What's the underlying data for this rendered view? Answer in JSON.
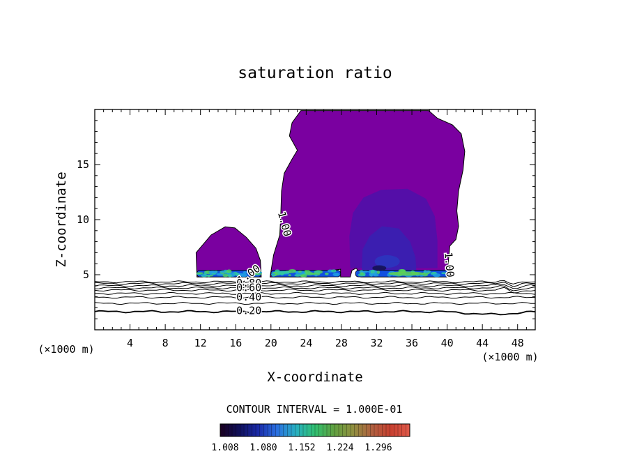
{
  "chart_data": {
    "type": "contour",
    "title": "saturation ratio",
    "xlabel": "X-coordinate",
    "ylabel": "Z-coordinate",
    "x_unit": "(×1000 m)",
    "z_unit": "(×1000 m)",
    "xlim": [
      0,
      50
    ],
    "ylim": [
      0,
      20
    ],
    "x_ticks": [
      4,
      8,
      12,
      16,
      20,
      24,
      28,
      32,
      36,
      40,
      44,
      48
    ],
    "y_ticks": [
      5,
      10,
      15
    ],
    "contour_interval_text": "CONTOUR INTERVAL = 1.000E-01",
    "contour_labels": [
      {
        "text": "1.00",
        "x": 21.5,
        "z": 9.6,
        "angle": 75
      },
      {
        "text": "1.00",
        "x": 40.2,
        "z": 5.9,
        "angle": 85
      },
      {
        "text": "1.00",
        "x": 17.5,
        "z": 5.0,
        "angle": -35
      },
      {
        "text": "0.80",
        "x": 17.5,
        "z": 4.2,
        "angle": 0
      },
      {
        "text": "0.60",
        "x": 17.5,
        "z": 3.8,
        "angle": 0
      },
      {
        "text": "0.40",
        "x": 17.5,
        "z": 2.95,
        "angle": 0
      },
      {
        "text": "0.20",
        "x": 17.5,
        "z": 1.7,
        "angle": 0
      }
    ],
    "colorbar": {
      "tick_labels": [
        "1.008",
        "1.080",
        "1.152",
        "1.224",
        "1.296"
      ],
      "colors": [
        "#1a0020",
        "#10105a",
        "#1a2aa8",
        "#2a70e0",
        "#28b0c0",
        "#30c070",
        "#60a040",
        "#909040",
        "#b06040",
        "#c84030",
        "#e05a4a"
      ]
    },
    "fill_colors": {
      "supersaturated": "#7a00a0",
      "core": "#5010a8",
      "core_inner": "#3820b0",
      "base_band": [
        "#1050e0",
        "#20a0e0",
        "#30c8a0",
        "#50d060"
      ]
    }
  }
}
